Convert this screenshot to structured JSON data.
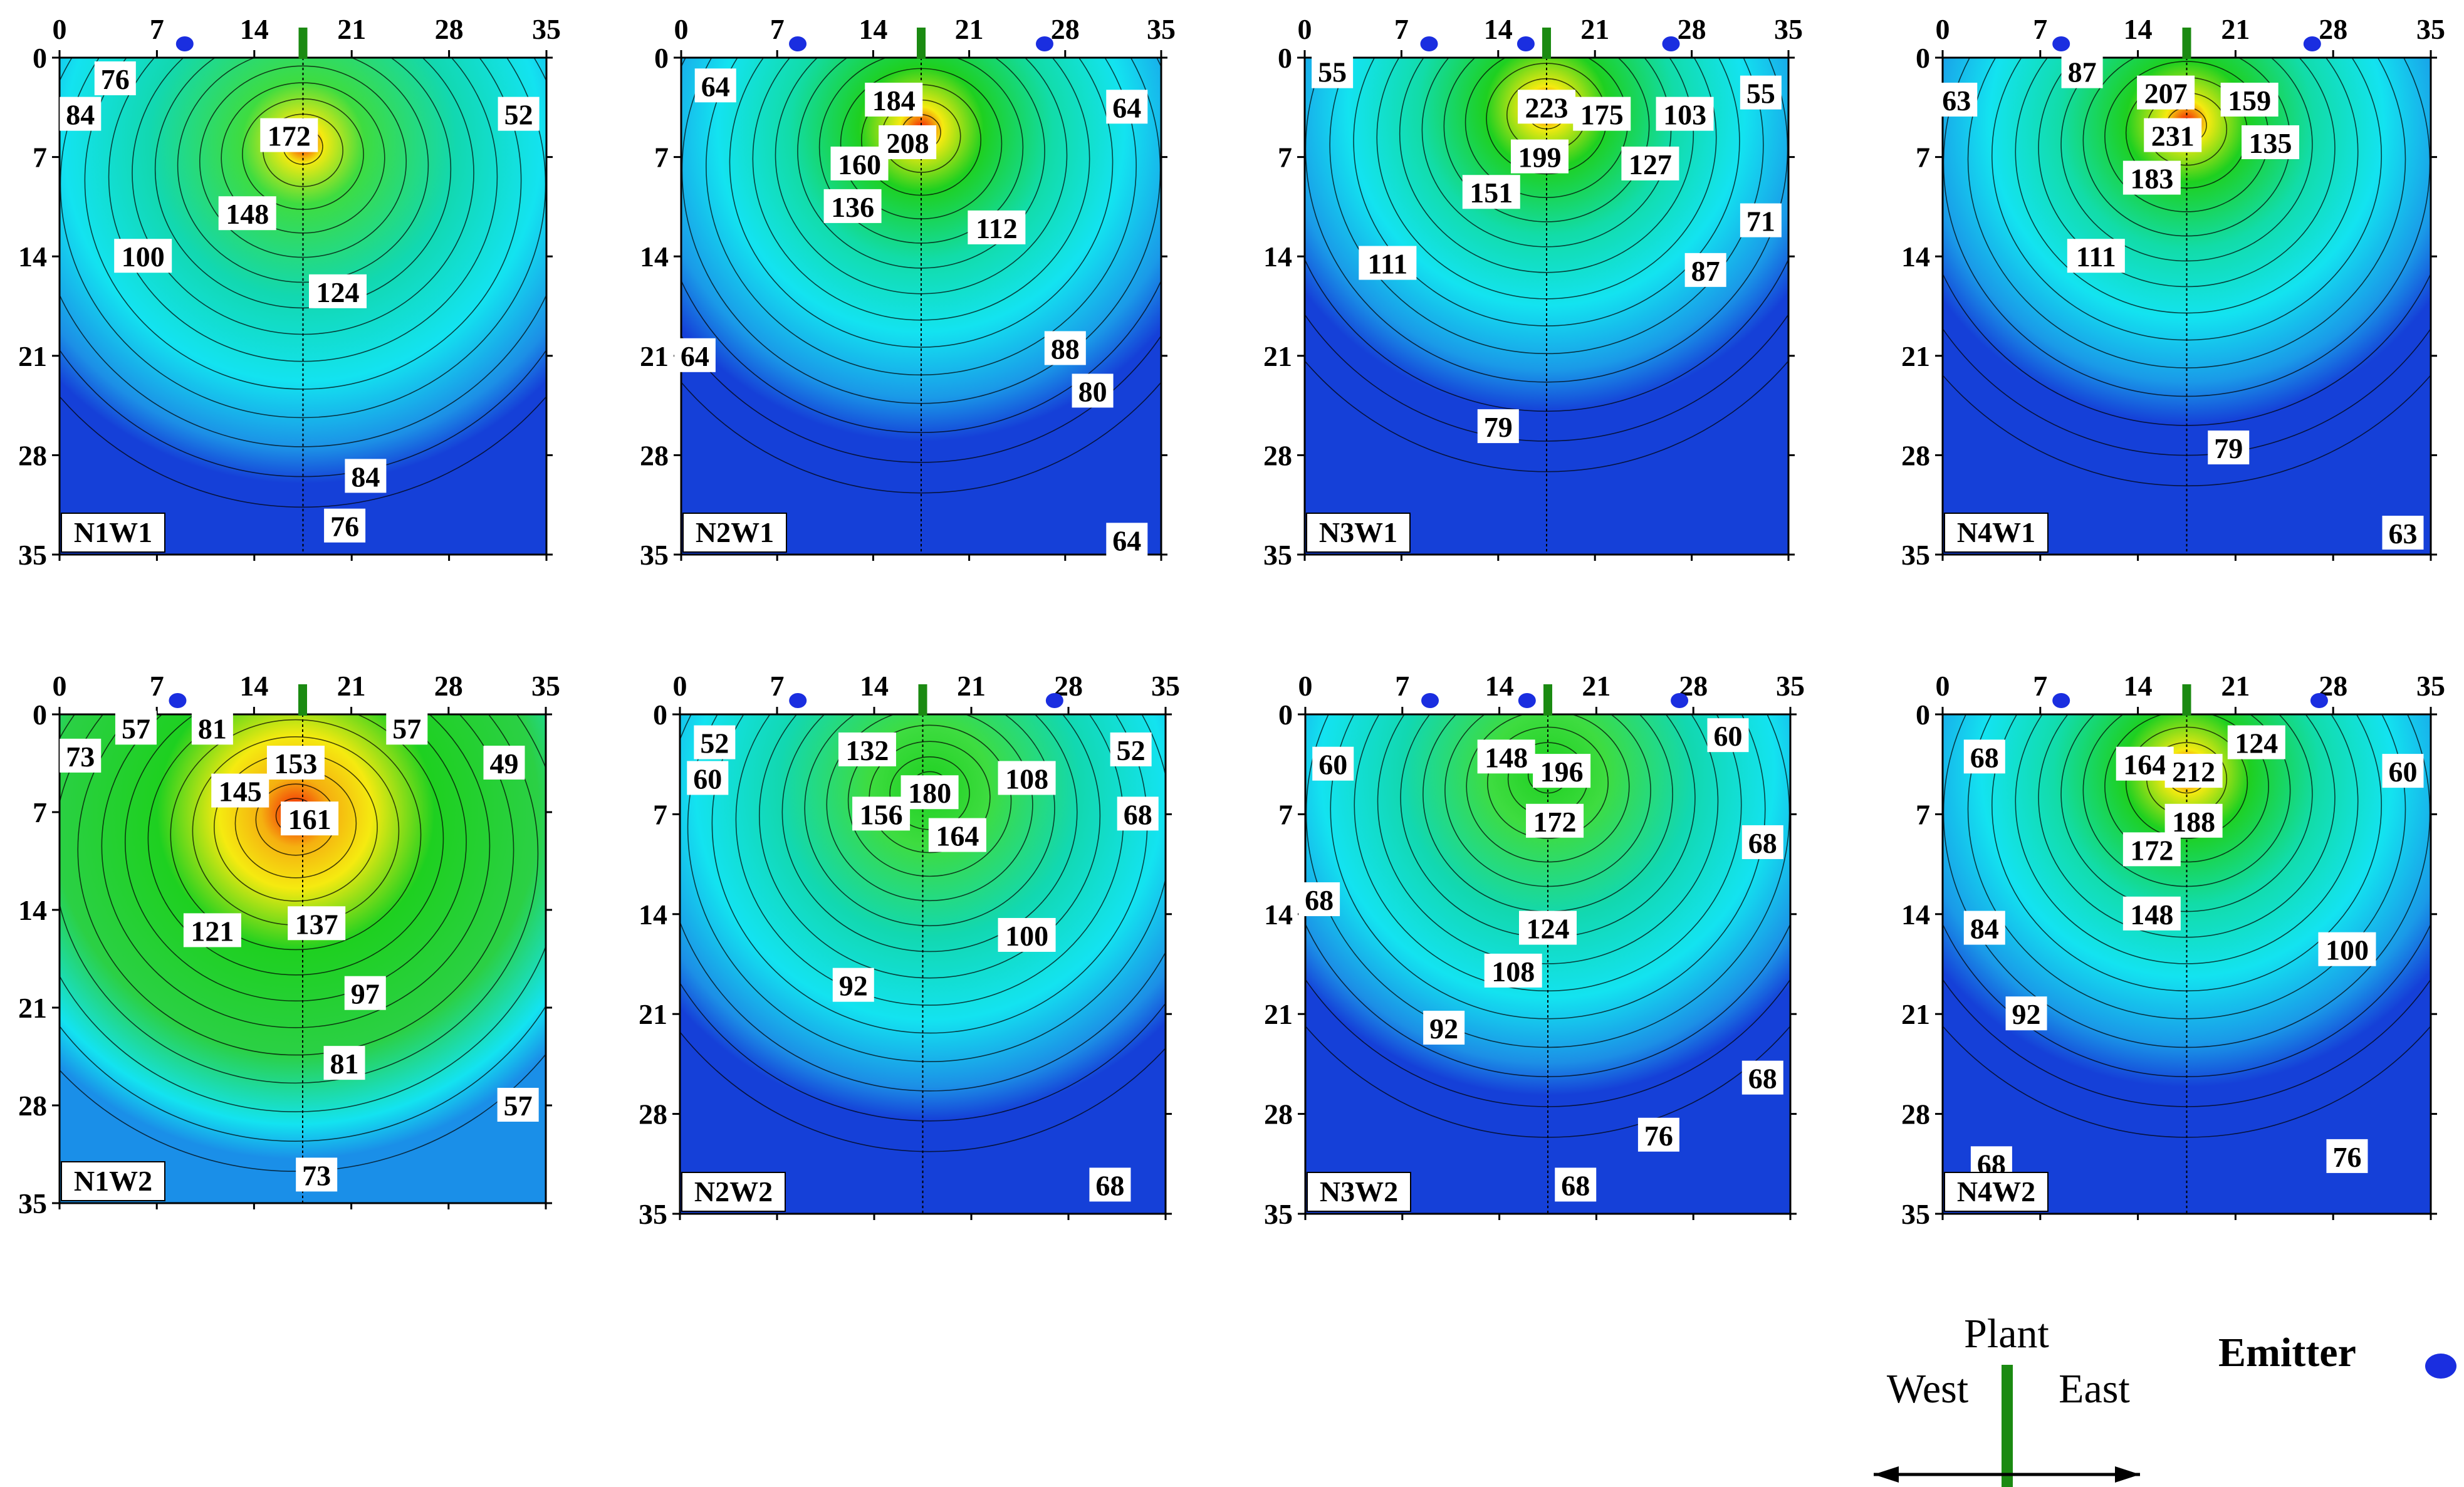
{
  "figure": {
    "x_ticks": [
      0,
      7,
      14,
      21,
      28,
      35
    ],
    "y_ticks": [
      0,
      7,
      14,
      21,
      28,
      35
    ],
    "colors": {
      "low": "#1540d8",
      "mid": "#13e3f0",
      "green": "#1ed020",
      "yellow": "#f5ea10",
      "high": "#f31a05",
      "plant": "#1b8a12",
      "emitter": "#1a2ee0"
    }
  },
  "chart_data": [
    {
      "type": "heatmap",
      "panel_label": "N1W1",
      "x_range": [
        0,
        35
      ],
      "y_range": [
        0,
        35
      ],
      "grid": false,
      "emitters_x": [
        9
      ],
      "plant_x": 17.5,
      "peak": {
        "x": 17.5,
        "y": 6,
        "value": 180
      },
      "contour_labels": [
        {
          "text": "76",
          "x": 4,
          "y": 1.5
        },
        {
          "text": "84",
          "x": 1.5,
          "y": 4
        },
        {
          "text": "52",
          "x": 33,
          "y": 4
        },
        {
          "text": "172",
          "x": 16.5,
          "y": 5.5
        },
        {
          "text": "148",
          "x": 13.5,
          "y": 11
        },
        {
          "text": "100",
          "x": 6,
          "y": 14
        },
        {
          "text": "124",
          "x": 20,
          "y": 16.5
        },
        {
          "text": "84",
          "x": 22,
          "y": 29.5
        },
        {
          "text": "76",
          "x": 20.5,
          "y": 33
        }
      ]
    },
    {
      "type": "heatmap",
      "panel_label": "N2W1",
      "x_range": [
        0,
        35
      ],
      "y_range": [
        0,
        35
      ],
      "grid": false,
      "emitters_x": [
        8.5,
        26.5
      ],
      "plant_x": 17.5,
      "peak": {
        "x": 17.5,
        "y": 5,
        "value": 216
      },
      "contour_labels": [
        {
          "text": "64",
          "x": 2.5,
          "y": 2
        },
        {
          "text": "184",
          "x": 15.5,
          "y": 3
        },
        {
          "text": "64",
          "x": 32.5,
          "y": 3.5
        },
        {
          "text": "208",
          "x": 16.5,
          "y": 6
        },
        {
          "text": "160",
          "x": 13,
          "y": 7.5
        },
        {
          "text": "136",
          "x": 12.5,
          "y": 10.5
        },
        {
          "text": "112",
          "x": 23,
          "y": 12
        },
        {
          "text": "64",
          "x": 1,
          "y": 21
        },
        {
          "text": "88",
          "x": 28,
          "y": 20.5
        },
        {
          "text": "80",
          "x": 30,
          "y": 23.5
        },
        {
          "text": "64",
          "x": 32.5,
          "y": 34
        }
      ]
    },
    {
      "type": "heatmap",
      "panel_label": "N3W1",
      "x_range": [
        0,
        35
      ],
      "y_range": [
        0,
        35
      ],
      "grid": false,
      "emitters_x": [
        9,
        16,
        26.5
      ],
      "plant_x": 17.5,
      "peak": {
        "x": 17.5,
        "y": 3.5,
        "value": 232
      },
      "contour_labels": [
        {
          "text": "55",
          "x": 2,
          "y": 1
        },
        {
          "text": "55",
          "x": 33,
          "y": 2.5
        },
        {
          "text": "223",
          "x": 17.5,
          "y": 3.5
        },
        {
          "text": "175",
          "x": 21.5,
          "y": 4
        },
        {
          "text": "103",
          "x": 27.5,
          "y": 4
        },
        {
          "text": "199",
          "x": 17,
          "y": 7
        },
        {
          "text": "127",
          "x": 25,
          "y": 7.5
        },
        {
          "text": "151",
          "x": 13.5,
          "y": 9.5
        },
        {
          "text": "71",
          "x": 33,
          "y": 11.5
        },
        {
          "text": "111",
          "x": 6,
          "y": 14.5
        },
        {
          "text": "87",
          "x": 29,
          "y": 15
        },
        {
          "text": "79",
          "x": 14,
          "y": 26
        }
      ]
    },
    {
      "type": "heatmap",
      "panel_label": "N4W1",
      "x_range": [
        0,
        35
      ],
      "y_range": [
        0,
        35
      ],
      "grid": false,
      "emitters_x": [
        8.5,
        26.5
      ],
      "plant_x": 17.5,
      "peak": {
        "x": 17.5,
        "y": 4.5,
        "value": 240
      },
      "contour_labels": [
        {
          "text": "87",
          "x": 10,
          "y": 1
        },
        {
          "text": "63",
          "x": 1,
          "y": 3
        },
        {
          "text": "207",
          "x": 16,
          "y": 2.5
        },
        {
          "text": "159",
          "x": 22,
          "y": 3
        },
        {
          "text": "231",
          "x": 16.5,
          "y": 5.5
        },
        {
          "text": "135",
          "x": 23.5,
          "y": 6
        },
        {
          "text": "183",
          "x": 15,
          "y": 8.5
        },
        {
          "text": "111",
          "x": 11,
          "y": 14
        },
        {
          "text": "79",
          "x": 20.5,
          "y": 27.5
        },
        {
          "text": "63",
          "x": 33,
          "y": 33.5
        }
      ]
    },
    {
      "type": "heatmap",
      "panel_label": "N1W2",
      "x_range": [
        0,
        35
      ],
      "y_range": [
        0,
        35
      ],
      "grid": false,
      "emitters_x": [
        8.5
      ],
      "plant_x": 17.5,
      "peak": {
        "x": 17,
        "y": 7,
        "value": 170
      },
      "contour_labels": [
        {
          "text": "57",
          "x": 5.5,
          "y": 1
        },
        {
          "text": "81",
          "x": 11,
          "y": 1
        },
        {
          "text": "57",
          "x": 25,
          "y": 1
        },
        {
          "text": "73",
          "x": 1.5,
          "y": 3
        },
        {
          "text": "153",
          "x": 17,
          "y": 3.5
        },
        {
          "text": "49",
          "x": 32,
          "y": 3.5
        },
        {
          "text": "145",
          "x": 13,
          "y": 5.5
        },
        {
          "text": "161",
          "x": 18,
          "y": 7.5
        },
        {
          "text": "121",
          "x": 11,
          "y": 15.5
        },
        {
          "text": "137",
          "x": 18.5,
          "y": 15
        },
        {
          "text": "97",
          "x": 22,
          "y": 20
        },
        {
          "text": "81",
          "x": 20.5,
          "y": 25
        },
        {
          "text": "57",
          "x": 33,
          "y": 28
        },
        {
          "text": "73",
          "x": 18.5,
          "y": 33
        }
      ]
    },
    {
      "type": "heatmap",
      "panel_label": "N2W2",
      "x_range": [
        0,
        35
      ],
      "y_range": [
        0,
        35
      ],
      "grid": false,
      "emitters_x": [
        8.5,
        27
      ],
      "plant_x": 17.5,
      "peak": {
        "x": 18,
        "y": 5,
        "value": 188
      },
      "contour_labels": [
        {
          "text": "52",
          "x": 2.5,
          "y": 2
        },
        {
          "text": "132",
          "x": 13.5,
          "y": 2.5
        },
        {
          "text": "52",
          "x": 32.5,
          "y": 2.5
        },
        {
          "text": "60",
          "x": 2,
          "y": 4.5
        },
        {
          "text": "108",
          "x": 25,
          "y": 4.5
        },
        {
          "text": "180",
          "x": 18,
          "y": 5.5
        },
        {
          "text": "156",
          "x": 14.5,
          "y": 7
        },
        {
          "text": "68",
          "x": 33,
          "y": 7
        },
        {
          "text": "164",
          "x": 20,
          "y": 8.5
        },
        {
          "text": "100",
          "x": 25,
          "y": 15.5
        },
        {
          "text": "92",
          "x": 12.5,
          "y": 19
        },
        {
          "text": "68",
          "x": 31,
          "y": 33
        }
      ]
    },
    {
      "type": "heatmap",
      "panel_label": "N3W2",
      "x_range": [
        0,
        35
      ],
      "y_range": [
        0,
        35
      ],
      "grid": false,
      "emitters_x": [
        9,
        16,
        27
      ],
      "plant_x": 17.5,
      "peak": {
        "x": 17.5,
        "y": 4,
        "value": 204
      },
      "contour_labels": [
        {
          "text": "148",
          "x": 14.5,
          "y": 3
        },
        {
          "text": "196",
          "x": 18.5,
          "y": 4
        },
        {
          "text": "60",
          "x": 30.5,
          "y": 1.5
        },
        {
          "text": "60",
          "x": 2,
          "y": 3.5
        },
        {
          "text": "172",
          "x": 18,
          "y": 7.5
        },
        {
          "text": "68",
          "x": 33,
          "y": 9
        },
        {
          "text": "68",
          "x": 1,
          "y": 13
        },
        {
          "text": "124",
          "x": 17.5,
          "y": 15
        },
        {
          "text": "108",
          "x": 15,
          "y": 18
        },
        {
          "text": "92",
          "x": 10,
          "y": 22
        },
        {
          "text": "68",
          "x": 33,
          "y": 25.5
        },
        {
          "text": "76",
          "x": 25.5,
          "y": 29.5
        },
        {
          "text": "68",
          "x": 19.5,
          "y": 33
        }
      ]
    },
    {
      "type": "heatmap",
      "panel_label": "N4W2",
      "x_range": [
        0,
        35
      ],
      "y_range": [
        0,
        35
      ],
      "grid": false,
      "emitters_x": [
        8.5,
        27
      ],
      "plant_x": 17.5,
      "peak": {
        "x": 17.5,
        "y": 4,
        "value": 220
      },
      "contour_labels": [
        {
          "text": "124",
          "x": 22.5,
          "y": 2
        },
        {
          "text": "68",
          "x": 3,
          "y": 3
        },
        {
          "text": "164",
          "x": 14.5,
          "y": 3.5
        },
        {
          "text": "212",
          "x": 18,
          "y": 4
        },
        {
          "text": "60",
          "x": 33,
          "y": 4
        },
        {
          "text": "188",
          "x": 18,
          "y": 7.5
        },
        {
          "text": "172",
          "x": 15,
          "y": 9.5
        },
        {
          "text": "148",
          "x": 15,
          "y": 14
        },
        {
          "text": "84",
          "x": 3,
          "y": 15
        },
        {
          "text": "100",
          "x": 29,
          "y": 16.5
        },
        {
          "text": "92",
          "x": 6,
          "y": 21
        },
        {
          "text": "68",
          "x": 3.5,
          "y": 31.5
        },
        {
          "text": "76",
          "x": 29,
          "y": 31
        }
      ]
    }
  ],
  "legend": {
    "plant_label": "Plant",
    "west_label": "West",
    "east_label": "East",
    "emitter_label": "Emitter"
  }
}
